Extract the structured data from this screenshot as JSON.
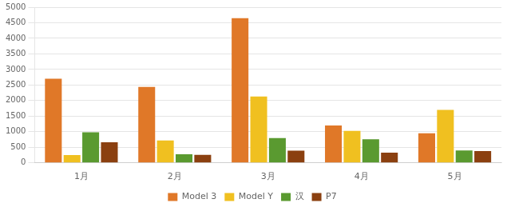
{
  "chart_data": {
    "type": "bar",
    "categories": [
      "1月",
      "2月",
      "3月",
      "4月",
      "5月"
    ],
    "series": [
      {
        "name": "Model 3",
        "color": "#E07828",
        "values": [
          2700,
          2440,
          4650,
          1200,
          950
        ]
      },
      {
        "name": "Model Y",
        "color": "#F0C020",
        "values": [
          250,
          720,
          2130,
          1030,
          1700
        ]
      },
      {
        "name": "汉",
        "color": "#5A9A30",
        "values": [
          980,
          280,
          800,
          760,
          400
        ]
      },
      {
        "name": "P7",
        "color": "#8B4010",
        "values": [
          660,
          260,
          390,
          330,
          380
        ]
      }
    ],
    "ylim": [
      0,
      5000
    ],
    "yticks": [
      0,
      500,
      1000,
      1500,
      2000,
      2500,
      3000,
      3500,
      4000,
      4500,
      5000
    ],
    "grid": true,
    "legend": "bottom"
  }
}
